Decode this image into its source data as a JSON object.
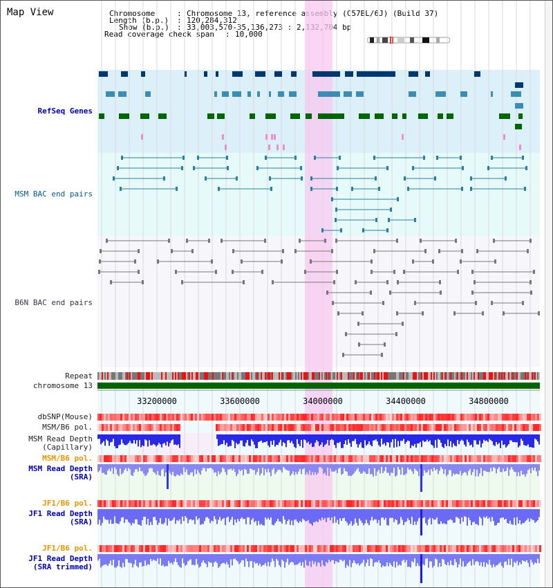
{
  "view_title": "Map View",
  "header": {
    "chromosome_label": "Chromosome",
    "chromosome_value": "Chromosome 13, reference assembly (C57BL/6J) (Build 37)",
    "length_label": "Length (b.p.)",
    "length_value": "120,284,312",
    "show_label": "Show (b.p.)",
    "show_value": "33,003,570-35,136,273 : 2,132,704 bp",
    "coverage_label": "Read coverage check span",
    "coverage_value": "10,000"
  },
  "tracks": {
    "refseq": "RefSeq Genes",
    "msm_bac": "MSM BAC end pairs",
    "b6n_bac": "B6N BAC end pairs",
    "repeat": "Repeat",
    "chromosome": "chromosome 13",
    "dbsnp": "dbSNP(Mouse)",
    "msm_b6_pol_1": "MSM/B6 pol.",
    "msm_depth_cap_1": "MSM Read Depth",
    "msm_depth_cap_2": "(Capillary)",
    "msm_b6_pol_2": "MSM/B6 pol.",
    "msm_depth_sra_1": "MSM Read Depth",
    "msm_depth_sra_2": "(SRA)",
    "jf1_pol_1": "JF1/B6 pol.",
    "jf1_depth_sra_1": "JF1 Read Depth",
    "jf1_depth_sra_2": "(SRA)",
    "jf1_pol_2": "JF1/B6 pol.",
    "jf1_depth_trim_1": "JF1 Read Depth",
    "jf1_depth_trim_2": "(SRA trimmed)"
  },
  "axis_ticks": [
    "33200000",
    "33600000",
    "34000000",
    "34400000",
    "34800000"
  ],
  "colors": {
    "refseq_bg": "#dcf0fa",
    "bac_bg": "#e6fafa",
    "highlight": "#f8c8f0",
    "gene_dark": "#00376e",
    "gene_mid": "#3c8cb4",
    "gene_green": "#006400",
    "chromosome_bar": "#006400",
    "depth_blue": "#3c3cf0"
  }
}
